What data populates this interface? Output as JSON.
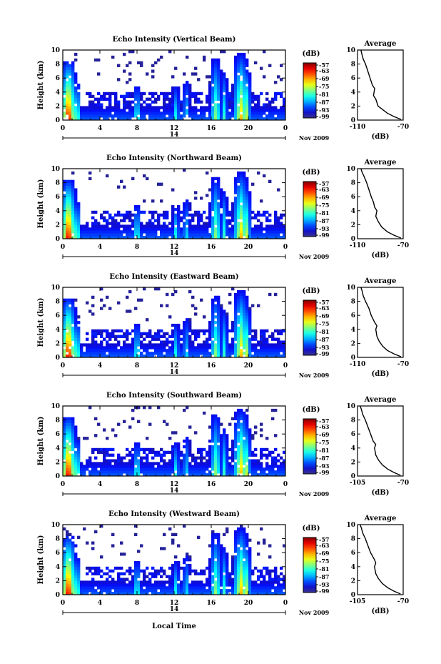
{
  "figure": {
    "xlabel": "Local Time",
    "date_label": "Nov 2009",
    "day_label": "14",
    "colorbar_unit": "(dB)",
    "avg_title": "Average",
    "avg_xlabel": "(dB)"
  },
  "chart_data": [
    {
      "type": "heatmap",
      "title": "Echo Intensity (Vertical Beam)",
      "ylabel": "Height (km)",
      "xlim": [
        0,
        24
      ],
      "ylim": [
        0,
        10
      ],
      "xticks": [
        "0",
        "4",
        "8",
        "12",
        "16",
        "20",
        "0"
      ],
      "yticks": [
        "0",
        "2",
        "4",
        "6",
        "8",
        "10"
      ],
      "colorbar": {
        "ticks": [
          "-57",
          "-63",
          "-69",
          "-75",
          "-81",
          "-87",
          "-93",
          "-99"
        ],
        "range": [
          -99,
          -57
        ]
      },
      "average": {
        "xlim": [
          -110,
          -70
        ],
        "xticks": [
          "-110",
          "-70"
        ],
        "yticks": [
          "0",
          "2",
          "4",
          "6",
          "8",
          "10"
        ],
        "profile": [
          [
            -72,
            0.1
          ],
          [
            -78,
            0.5
          ],
          [
            -84,
            1
          ],
          [
            -88,
            1.5
          ],
          [
            -92,
            2
          ],
          [
            -94,
            3
          ],
          [
            -96,
            3.5
          ],
          [
            -95,
            4.5
          ],
          [
            -97,
            5
          ],
          [
            -99,
            6
          ],
          [
            -101,
            7
          ],
          [
            -103,
            8
          ],
          [
            -105,
            8.7
          ],
          [
            -106,
            9.3
          ],
          [
            -107,
            10
          ]
        ]
      }
    },
    {
      "type": "heatmap",
      "title": "Echo Intensity (Northward Beam)",
      "ylabel": "Height (km)",
      "xlim": [
        0,
        24
      ],
      "ylim": [
        0,
        10
      ],
      "xticks": [
        "0",
        "4",
        "8",
        "12",
        "16",
        "20",
        "0"
      ],
      "yticks": [
        "0",
        "2",
        "4",
        "6",
        "8",
        "10"
      ],
      "colorbar": {
        "ticks": [
          "-57",
          "-63",
          "-69",
          "-75",
          "-81",
          "-87",
          "-93",
          "-99"
        ],
        "range": [
          -99,
          -57
        ]
      },
      "average": {
        "xlim": [
          -110,
          -70
        ],
        "xticks": [
          "-110",
          "-70"
        ],
        "yticks": [
          "0",
          "2",
          "4",
          "6",
          "8",
          "10"
        ],
        "profile": [
          [
            -72,
            0.1
          ],
          [
            -78,
            0.5
          ],
          [
            -84,
            1
          ],
          [
            -89,
            1.7
          ],
          [
            -92,
            2.5
          ],
          [
            -94,
            3.2
          ],
          [
            -93,
            4
          ],
          [
            -95,
            4.5
          ],
          [
            -96,
            5.2
          ],
          [
            -98,
            6
          ],
          [
            -100,
            7
          ],
          [
            -102,
            8
          ],
          [
            -104,
            8.8
          ],
          [
            -106,
            9.5
          ],
          [
            -107,
            10
          ]
        ]
      }
    },
    {
      "type": "heatmap",
      "title": "Echo Intensity (Eastward Beam)",
      "ylabel": "Height (km)",
      "xlim": [
        0,
        24
      ],
      "ylim": [
        0,
        10
      ],
      "xticks": [
        "0",
        "4",
        "8",
        "12",
        "16",
        "20",
        "0"
      ],
      "yticks": [
        "0",
        "2",
        "4",
        "6",
        "8",
        "10"
      ],
      "colorbar": {
        "ticks": [
          "-57",
          "-63",
          "-69",
          "-75",
          "-81",
          "-87",
          "-93",
          "-99"
        ],
        "range": [
          -99,
          -57
        ]
      },
      "average": {
        "xlim": [
          -110,
          -70
        ],
        "xticks": [
          "-110",
          "-70"
        ],
        "yticks": [
          "0",
          "2",
          "4",
          "6",
          "8",
          "10"
        ],
        "profile": [
          [
            -72,
            0.1
          ],
          [
            -78,
            0.5
          ],
          [
            -84,
            1
          ],
          [
            -88,
            1.6
          ],
          [
            -91,
            2.3
          ],
          [
            -93,
            3
          ],
          [
            -94,
            4
          ],
          [
            -93,
            4.5
          ],
          [
            -95,
            5
          ],
          [
            -98,
            6
          ],
          [
            -100,
            7
          ],
          [
            -103,
            8
          ],
          [
            -105,
            8.8
          ],
          [
            -106,
            9.5
          ],
          [
            -107,
            10
          ]
        ]
      }
    },
    {
      "type": "heatmap",
      "title": "Echo Intensity (Southward Beam)",
      "ylabel": "Height (km)",
      "xlim": [
        0,
        24
      ],
      "ylim": [
        0,
        10
      ],
      "xticks": [
        "0",
        "4",
        "8",
        "12",
        "16",
        "20",
        "0"
      ],
      "yticks": [
        "0",
        "2",
        "4",
        "6",
        "8",
        "10"
      ],
      "colorbar": {
        "ticks": [
          "-57",
          "-63",
          "-69",
          "-75",
          "-81",
          "-87",
          "-93",
          "-99"
        ],
        "range": [
          -99,
          -57
        ]
      },
      "average": {
        "xlim": [
          -105,
          -70
        ],
        "xticks": [
          "-105",
          "-70"
        ],
        "yticks": [
          "0",
          "2",
          "4",
          "6",
          "8",
          "10"
        ],
        "profile": [
          [
            -72,
            0.1
          ],
          [
            -77,
            0.5
          ],
          [
            -82,
            1
          ],
          [
            -86,
            1.6
          ],
          [
            -89,
            2.3
          ],
          [
            -91,
            3
          ],
          [
            -92,
            4
          ],
          [
            -91,
            4.5
          ],
          [
            -93,
            5
          ],
          [
            -95,
            6
          ],
          [
            -97,
            7
          ],
          [
            -99,
            8
          ],
          [
            -101,
            8.8
          ],
          [
            -102,
            9.5
          ],
          [
            -103,
            10
          ]
        ]
      }
    },
    {
      "type": "heatmap",
      "title": "Echo Intensity (Westward Beam)",
      "ylabel": "Height (km)",
      "xlim": [
        0,
        24
      ],
      "ylim": [
        0,
        10
      ],
      "xticks": [
        "0",
        "4",
        "8",
        "12",
        "16",
        "20",
        "0"
      ],
      "yticks": [
        "0",
        "2",
        "4",
        "6",
        "8",
        "10"
      ],
      "colorbar": {
        "ticks": [
          "-57",
          "-63",
          "-69",
          "-75",
          "-81",
          "-87",
          "-93",
          "-99"
        ],
        "range": [
          -99,
          -57
        ]
      },
      "average": {
        "xlim": [
          -105,
          -70
        ],
        "xticks": [
          "-105",
          "-70"
        ],
        "yticks": [
          "0",
          "2",
          "4",
          "6",
          "8",
          "10"
        ],
        "profile": [
          [
            -72,
            0.1
          ],
          [
            -77,
            0.5
          ],
          [
            -82,
            1
          ],
          [
            -86,
            1.6
          ],
          [
            -89,
            2.3
          ],
          [
            -91,
            3
          ],
          [
            -92,
            4
          ],
          [
            -91,
            4.5
          ],
          [
            -92,
            5
          ],
          [
            -95,
            6
          ],
          [
            -97,
            7
          ],
          [
            -99,
            8
          ],
          [
            -101,
            8.8
          ],
          [
            -102,
            9.5
          ],
          [
            -103,
            10
          ]
        ]
      }
    }
  ]
}
